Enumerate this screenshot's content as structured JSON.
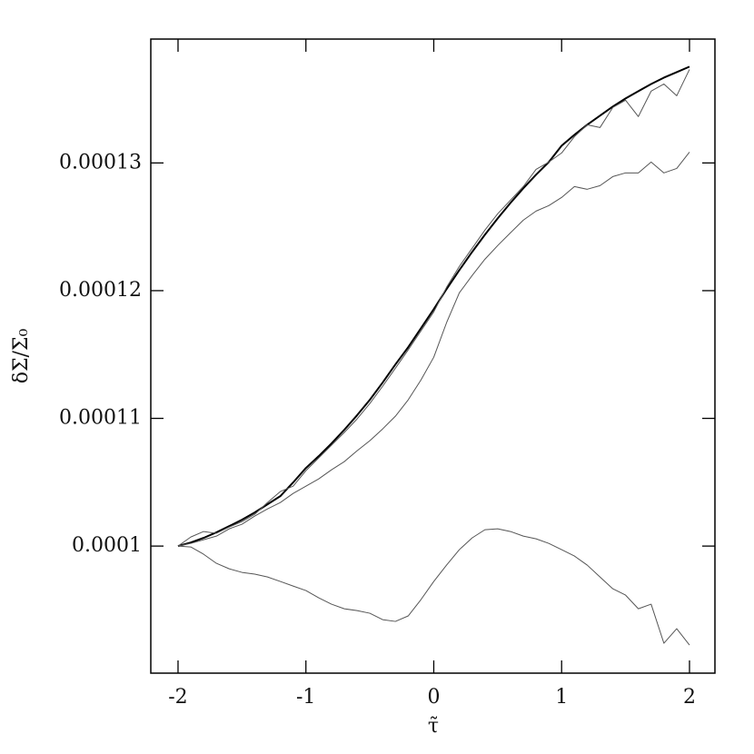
{
  "chart_data": {
    "type": "line",
    "xlabel": "τ̃",
    "ylabel": "δΣ/Σ₀",
    "x": [
      -2,
      -1.9,
      -1.8,
      -1.7,
      -1.6,
      -1.5,
      -1.4,
      -1.3,
      -1.2,
      -1.1,
      -1,
      -0.9,
      -0.8,
      -0.7,
      -0.6,
      -0.5,
      -0.4,
      -0.3,
      -0.2,
      -0.1,
      0,
      0.1,
      0.2,
      0.3,
      0.4,
      0.5,
      0.6,
      0.7,
      0.8,
      0.9,
      1,
      1.1,
      1.2,
      1.3,
      1.4,
      1.5,
      1.6,
      1.7,
      1.8,
      1.9,
      2
    ],
    "series": [
      {
        "color": "#000000",
        "values": [
          0.0001,
          0.00010028,
          0.00010064,
          0.00010107,
          0.00010156,
          0.00010206,
          0.00010263,
          0.00010327,
          0.00010391,
          0.00010498,
          0.00010611,
          0.00010704,
          0.00010803,
          0.0001091,
          0.00011024,
          0.00011145,
          0.0001128,
          0.00011422,
          0.00011557,
          0.00011706,
          0.00011855,
          0.00012012,
          0.00012161,
          0.00012303,
          0.00012438,
          0.00012566,
          0.00012687,
          0.00012801,
          0.00012908,
          0.00013007,
          0.00013135,
          0.0001322,
          0.00013299,
          0.0001337,
          0.00013441,
          0.00013505,
          0.00013562,
          0.00013618,
          0.00013668,
          0.00013711,
          0.00013754
        ]
      },
      {
        "color": "#555555",
        "values": [
          0.0001,
          0.00010071,
          0.00010114,
          0.000101,
          0.00010149,
          0.00010192,
          0.00010249,
          0.00010341,
          0.00010427,
          0.00010469,
          0.0001059,
          0.0001069,
          0.00010789,
          0.00010889,
          0.00010995,
          0.00011116,
          0.00011251,
          0.00011393,
          0.00011536,
          0.00011685,
          0.00011834,
          0.00012026,
          0.0001219,
          0.00012332,
          0.00012474,
          0.00012602,
          0.00012709,
          0.00012815,
          0.0001295,
          0.00013007,
          0.00013078,
          0.00013206,
          0.00013299,
          0.00013277,
          0.00013434,
          0.00013491,
          0.00013363,
          0.00013562,
          0.00013618,
          0.00013526,
          0.00013732
        ]
      },
      {
        "color": "#555555",
        "values": [
          0.0001,
          0.00010021,
          0.0001005,
          0.00010078,
          0.00010135,
          0.00010171,
          0.00010235,
          0.00010291,
          0.00010341,
          0.00010412,
          0.00010469,
          0.00010526,
          0.00010597,
          0.00010661,
          0.00010746,
          0.00010825,
          0.00010917,
          0.00011017,
          0.00011145,
          0.00011301,
          0.00011479,
          0.00011749,
          0.00011983,
          0.00012118,
          0.00012246,
          0.00012353,
          0.00012453,
          0.00012552,
          0.00012623,
          0.00012666,
          0.0001273,
          0.00012815,
          0.00012794,
          0.00012822,
          0.00012893,
          0.00012922,
          0.00012922,
          0.00013007,
          0.00012922,
          0.00012957,
          0.00013085
        ]
      },
      {
        "color": "#555555",
        "values": [
          0.0001,
          9.993e-05,
          9.936e-05,
          9.865e-05,
          9.822e-05,
          9.794e-05,
          9.78e-05,
          9.758e-05,
          9.723e-05,
          9.687e-05,
          9.652e-05,
          9.595e-05,
          9.545e-05,
          9.509e-05,
          9.495e-05,
          9.474e-05,
          9.424e-05,
          9.41e-05,
          9.453e-05,
          9.581e-05,
          9.723e-05,
          9.851e-05,
          9.972e-05,
          0.00010064,
          0.00010128,
          0.00010135,
          0.00010114,
          0.00010078,
          0.00010057,
          0.00010021,
          9.972e-05,
          9.922e-05,
          9.851e-05,
          9.758e-05,
          9.666e-05,
          9.616e-05,
          9.509e-05,
          9.545e-05,
          9.239e-05,
          9.353e-05,
          9.225e-05
        ]
      }
    ],
    "xlim": [
      -2.213,
      2.199
    ],
    "ylim": [
      9.005e-05,
      0.0001397
    ],
    "xticks": [
      -2,
      -1,
      0,
      1,
      2
    ],
    "yticks": [
      0.0001,
      0.00011,
      0.00012,
      0.00013
    ]
  }
}
